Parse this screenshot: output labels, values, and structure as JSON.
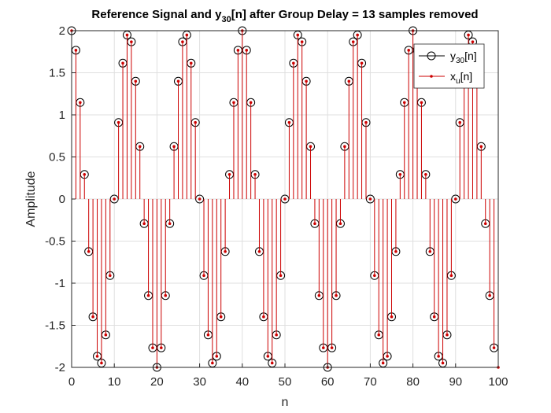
{
  "chart_data": {
    "type": "stem",
    "title_parts": [
      "Reference Signal and y",
      "30",
      "[n] after Group Delay = 13 samples removed"
    ],
    "xlabel": "n",
    "ylabel": "Amplitude",
    "xlim": [
      0,
      100
    ],
    "ylim": [
      -2,
      2
    ],
    "x_ticks": [
      0,
      10,
      20,
      30,
      40,
      50,
      60,
      70,
      80,
      90,
      100
    ],
    "y_ticks": [
      -2,
      -1.5,
      -1,
      -0.5,
      0,
      0.5,
      1,
      1.5,
      2
    ],
    "grid": true,
    "legend_position": "top-right",
    "series": [
      {
        "name_parts": [
          "y",
          "30",
          "[n]"
        ],
        "marker": "open-circle",
        "color": "#000000",
        "x_start": 0,
        "values": [
          2.0,
          1.768,
          1.147,
          0.292,
          -0.624,
          -1.399,
          -1.868,
          -1.949,
          -1.614,
          -0.909,
          0.0,
          0.909,
          1.614,
          1.949,
          1.868,
          1.399,
          0.624,
          -0.292,
          -1.147,
          -1.768,
          -2.0,
          -1.768,
          -1.147,
          -0.292,
          0.624,
          1.399,
          1.868,
          1.949,
          1.614,
          0.909,
          0.0,
          -0.909,
          -1.614,
          -1.949,
          -1.868,
          -1.399,
          -0.624,
          0.292,
          1.147,
          1.768,
          2.0,
          1.768,
          1.147,
          0.292,
          -0.624,
          -1.399,
          -1.868,
          -1.949,
          -1.614,
          -0.909,
          0.0,
          0.909,
          1.614,
          1.949,
          1.868,
          1.399,
          0.624,
          -0.292,
          -1.147,
          -1.768,
          -2.0,
          -1.768,
          -1.147,
          -0.292,
          0.624,
          1.399,
          1.868,
          1.949,
          1.614,
          0.909,
          0.0,
          -0.909,
          -1.614,
          -1.949,
          -1.868,
          -1.399,
          -0.624,
          0.292,
          1.147,
          1.768,
          2.0,
          1.768,
          1.147,
          0.292,
          -0.624,
          -1.399,
          -1.868,
          -1.949,
          -1.614,
          -0.909,
          0.0,
          0.909,
          1.614,
          1.949,
          1.868,
          1.399,
          0.624,
          -0.292,
          -1.147,
          -1.768
        ]
      },
      {
        "name_parts": [
          "x",
          "u",
          "[n]"
        ],
        "marker": "dot",
        "color": "#cc0000",
        "x_start": 0,
        "values": [
          2.0,
          1.768,
          1.147,
          0.292,
          -0.624,
          -1.399,
          -1.868,
          -1.949,
          -1.614,
          -0.909,
          0.0,
          0.909,
          1.614,
          1.949,
          1.868,
          1.399,
          0.624,
          -0.292,
          -1.147,
          -1.768,
          -2.0,
          -1.768,
          -1.147,
          -0.292,
          0.624,
          1.399,
          1.868,
          1.949,
          1.614,
          0.909,
          0.0,
          -0.909,
          -1.614,
          -1.949,
          -1.868,
          -1.399,
          -0.624,
          0.292,
          1.147,
          1.768,
          2.0,
          1.768,
          1.147,
          0.292,
          -0.624,
          -1.399,
          -1.868,
          -1.949,
          -1.614,
          -0.909,
          0.0,
          0.909,
          1.614,
          1.949,
          1.868,
          1.399,
          0.624,
          -0.292,
          -1.147,
          -1.768,
          -2.0,
          -1.768,
          -1.147,
          -0.292,
          0.624,
          1.399,
          1.868,
          1.949,
          1.614,
          0.909,
          0.0,
          -0.909,
          -1.614,
          -1.949,
          -1.868,
          -1.399,
          -0.624,
          0.292,
          1.147,
          1.768,
          2.0,
          1.768,
          1.147,
          0.292,
          -0.624,
          -1.399,
          -1.868,
          -1.949,
          -1.614,
          -0.909,
          0.0,
          0.909,
          1.614,
          1.949,
          1.868,
          1.399,
          0.624,
          -0.292,
          -1.147,
          -1.768,
          -2.0
        ]
      }
    ]
  }
}
